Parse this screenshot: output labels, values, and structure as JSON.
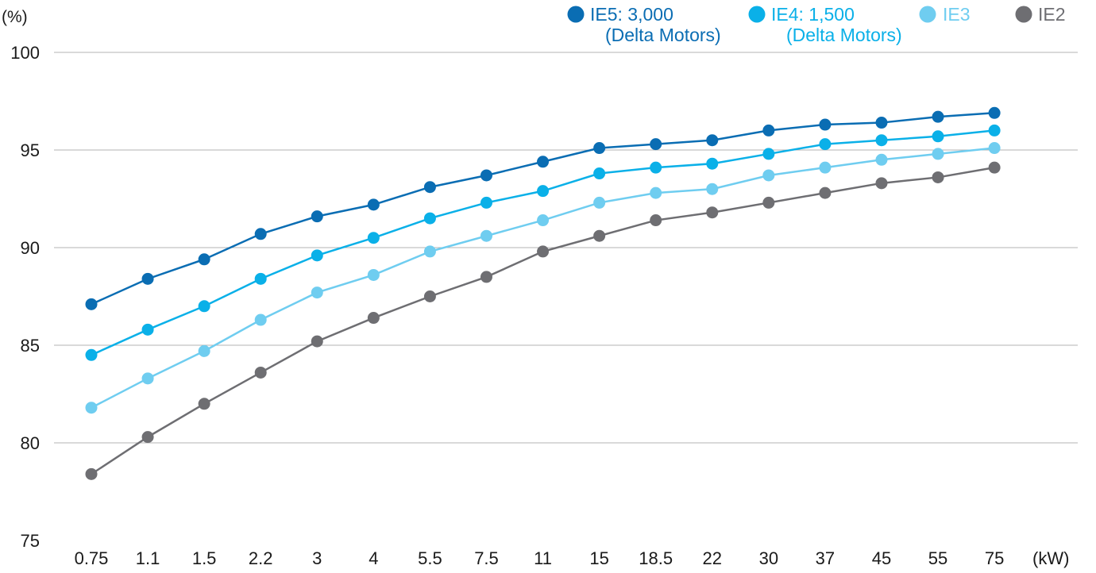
{
  "chart_data": {
    "type": "line",
    "y_unit_label": "(%)",
    "x_unit_label": "(kW)",
    "categories": [
      "0.75",
      "1.1",
      "1.5",
      "2.2",
      "3",
      "4",
      "5.5",
      "7.5",
      "11",
      "15",
      "18.5",
      "22",
      "30",
      "37",
      "45",
      "55",
      "75"
    ],
    "yticks": [
      75,
      80,
      85,
      90,
      95,
      100
    ],
    "ylim": [
      75,
      100
    ],
    "grid": true,
    "legend_position": "top-right",
    "series": [
      {
        "name": "IE5: 3,000",
        "subtitle": "(Delta Motors)",
        "color": "#0a6db3",
        "values": [
          87.1,
          88.4,
          89.4,
          90.7,
          91.6,
          92.2,
          93.1,
          93.7,
          94.4,
          95.1,
          95.3,
          95.5,
          96.0,
          96.3,
          96.4,
          96.7,
          96.9
        ]
      },
      {
        "name": "IE4: 1,500",
        "subtitle": "(Delta Motors)",
        "color": "#0ab0e8",
        "values": [
          84.5,
          85.8,
          87.0,
          88.4,
          89.6,
          90.5,
          91.5,
          92.3,
          92.9,
          93.8,
          94.1,
          94.3,
          94.8,
          95.3,
          95.5,
          95.7,
          96.0
        ]
      },
      {
        "name": "IE3",
        "color": "#6fcdf0",
        "values": [
          81.8,
          83.3,
          84.7,
          86.3,
          87.7,
          88.6,
          89.8,
          90.6,
          91.4,
          92.3,
          92.8,
          93.0,
          93.7,
          94.1,
          94.5,
          94.8,
          95.1
        ]
      },
      {
        "name": "IE2",
        "color": "#6e6e72",
        "values": [
          78.4,
          80.3,
          82.0,
          83.6,
          85.2,
          86.4,
          87.5,
          88.5,
          89.8,
          90.6,
          91.4,
          91.8,
          92.3,
          92.8,
          93.3,
          93.6,
          94.1
        ]
      }
    ]
  }
}
